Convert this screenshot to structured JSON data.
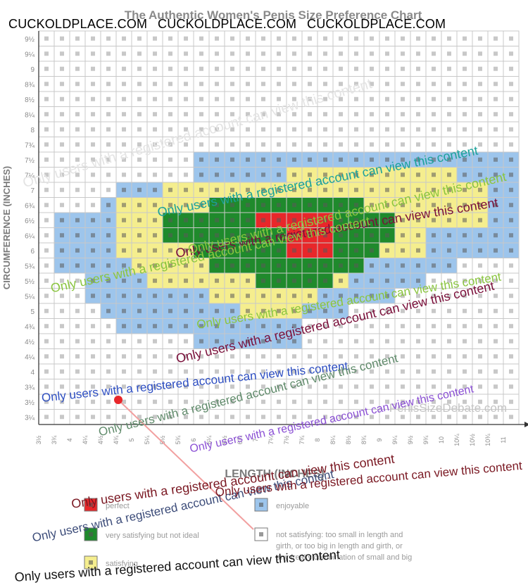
{
  "chart_data": {
    "type": "heatmap",
    "title": "The Authentic Women's Penis Size Preference Chart",
    "ylabel": "CIRCUMFERENCE (INCHES)",
    "xlabel": "LENGTH (INCHES)",
    "site_credit": "PenisSizeDebate.com",
    "y_tick_labels": [
      "9½",
      "9¼",
      "9",
      "8¾",
      "8½",
      "8¼",
      "8",
      "7¾",
      "7½",
      "7¼",
      "7",
      "6¾",
      "6½",
      "6¼",
      "6",
      "5¾",
      "5½",
      "5¼",
      "5",
      "4¾",
      "4½",
      "4¼",
      "4",
      "3¾",
      "3½",
      "3¼"
    ],
    "x_tick_labels": [
      "3½",
      "3¾",
      "4",
      "4¼",
      "4½",
      "4¾",
      "5",
      "5¼",
      "5½",
      "5¾",
      "6",
      "6¼",
      "6½",
      "6¾",
      "7",
      "7¼",
      "7½",
      "7¾",
      "8",
      "8¼",
      "8½",
      "8¾",
      "9",
      "9¼",
      "9½",
      "9¾",
      "10",
      "10¼",
      "10½",
      "10¾",
      "11"
    ],
    "legend": [
      {
        "key": "perfect",
        "color": "#e8272a",
        "label": "perfect"
      },
      {
        "key": "very_satisfying",
        "color": "#1f8a2c",
        "label": "very satisfying but not ideal"
      },
      {
        "key": "satisfying",
        "color": "#f5ee8e",
        "label": "satisfying"
      },
      {
        "key": "enjoyable",
        "color": "#9dc5ec",
        "label": "enjoyable"
      },
      {
        "key": "none",
        "color": "#ffffff",
        "label": "not satisfying: too small in length and girth, or too big in length and girth, or any freaky combination of small and big"
      }
    ],
    "regions": {
      "enjoyable_rows": [
        {
          "y": "7½",
          "x_from": "6",
          "x_to": "11"
        },
        {
          "y": "7¼",
          "x_from": "6",
          "x_to": "11"
        },
        {
          "y": "7",
          "x_from": "4¾",
          "x_to": "11"
        },
        {
          "y": "6¾",
          "x_from": "4½",
          "x_to": "11"
        },
        {
          "y": "6½",
          "x_from": "3¾",
          "x_to": "11"
        },
        {
          "y": "6¼",
          "x_from": "3¾",
          "x_to": "11"
        },
        {
          "y": "6",
          "x_from": "3¾",
          "x_to": "11"
        },
        {
          "y": "5¾",
          "x_from": "3¾",
          "x_to": "10"
        },
        {
          "y": "5½",
          "x_from": "4¼",
          "x_to": "9½"
        },
        {
          "y": "5¼",
          "x_from": "4¼",
          "x_to": "9"
        },
        {
          "y": "5",
          "x_from": "4½",
          "x_to": "8¼"
        },
        {
          "y": "4¾",
          "x_from": "4¾",
          "x_to": "7½"
        },
        {
          "y": "4½",
          "x_from": "6",
          "x_to": "7½"
        }
      ],
      "satisfying_rows": [
        {
          "y": "7¼",
          "x_from": "7½",
          "x_to": "10"
        },
        {
          "y": "7",
          "x_from": "5½",
          "x_to": "10½"
        },
        {
          "y": "6¾",
          "x_from": "4¾",
          "x_to": "10½"
        },
        {
          "y": "6½",
          "x_from": "4¾",
          "x_to": "10½"
        },
        {
          "y": "6¼",
          "x_from": "4¾",
          "x_to": "9½"
        },
        {
          "y": "6",
          "x_from": "4¾",
          "x_to": "9½"
        },
        {
          "y": "5¾",
          "x_from": "5",
          "x_to": "8½"
        },
        {
          "y": "5½",
          "x_from": "5¼",
          "x_to": "8¼"
        },
        {
          "y": "5¼",
          "x_from": "6¼",
          "x_to": "7¾"
        },
        {
          "y": "5",
          "x_from": "6¾",
          "x_to": "7½"
        }
      ],
      "very_satisfying_rows": [
        {
          "y": "6¾",
          "x_from": "6¼",
          "x_to": "8½"
        },
        {
          "y": "6½",
          "x_from": "5½",
          "x_to": "9"
        },
        {
          "y": "6¼",
          "x_from": "5½",
          "x_to": "9"
        },
        {
          "y": "6",
          "x_from": "6",
          "x_to": "8¾"
        },
        {
          "y": "5¾",
          "x_from": "6¼",
          "x_to": "8½"
        },
        {
          "y": "5½",
          "x_from": "7",
          "x_to": "8"
        }
      ],
      "perfect_rows": [
        {
          "y": "6½",
          "x_from": "7",
          "x_to": "8"
        },
        {
          "y": "6¼",
          "x_from": "7½",
          "x_to": "8"
        },
        {
          "y": "6",
          "x_from": "7½",
          "x_to": "8"
        }
      ]
    },
    "grid": true
  },
  "overlay": {
    "brand_text": "CUCKOLDPLACE.COM",
    "watermark_text": "Only users with a registered account can view this content"
  }
}
